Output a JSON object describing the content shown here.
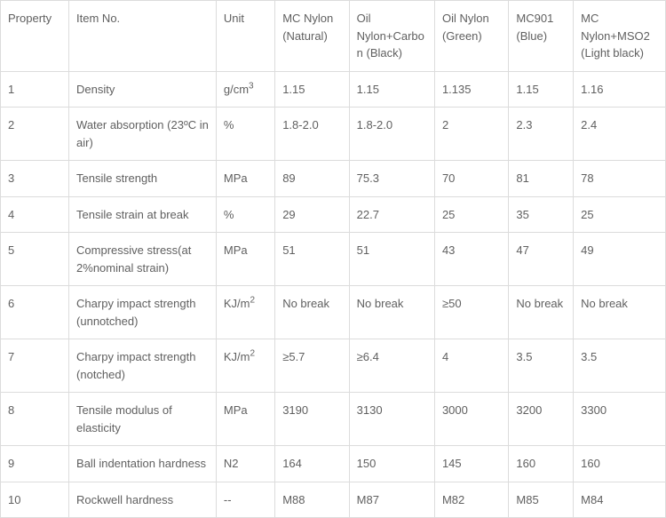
{
  "table": {
    "columns": [
      "Property",
      "Item No.",
      "Unit",
      "MC Nylon (Natural)",
      "Oil Nylon+Carbon (Black)",
      "Oil Nylon (Green)",
      "MC901 (Blue)",
      "MC Nylon+MSO2 (Light black)"
    ],
    "rows": [
      {
        "property": "1",
        "item": "Density",
        "unit_html": "g/cm<sup>3</sup>",
        "v": [
          "1.15",
          "1.15",
          "1.135",
          "1.15",
          "1.16"
        ]
      },
      {
        "property": "2",
        "item": " Water absorption (23ºC in air)",
        "unit_html": "%",
        "v": [
          "1.8-2.0",
          "1.8-2.0",
          "2",
          "2.3",
          "2.4"
        ]
      },
      {
        "property": "3",
        "item": "Tensile strength",
        "unit_html": "MPa",
        "v": [
          "89",
          "75.3",
          "70",
          "81",
          " 78"
        ]
      },
      {
        "property": "4",
        "item": "Tensile strain at break",
        "unit_html": "%",
        "v": [
          "29",
          "22.7",
          "25",
          "35",
          "25"
        ]
      },
      {
        "property": "5",
        "item": "Compressive stress(at 2%nominal strain)",
        "unit_html": "MPa",
        "v": [
          "51",
          "51",
          "43",
          "47",
          "49"
        ]
      },
      {
        "property": "6",
        "item": "Charpy impact strength (unnotched)",
        "unit_html": "KJ/m<sup>2</sup>",
        "v": [
          "No break",
          "No break",
          "≥50",
          "No break",
          "No break"
        ]
      },
      {
        "property": "7",
        "item": "Charpy impact strength (notched)",
        "unit_html": "KJ/m<sup>2</sup>",
        "v": [
          "≥5.7",
          "≥6.4",
          "4",
          "3.5",
          "3.5"
        ]
      },
      {
        "property": "8",
        "item": "Tensile modulus of elasticity",
        "unit_html": "MPa",
        "v": [
          "3190",
          "3130",
          "3000",
          "3200",
          "3300"
        ]
      },
      {
        "property": "9",
        "item": "Ball indentation hardness",
        "unit_html": "N2",
        "v": [
          "164",
          "150",
          "145",
          "160",
          "160"
        ]
      },
      {
        "property": "10",
        "item": "Rockwell hardness",
        "unit_html": "--",
        "v": [
          "M88",
          "M87",
          "M82",
          "M85",
          "M84"
        ]
      }
    ]
  }
}
